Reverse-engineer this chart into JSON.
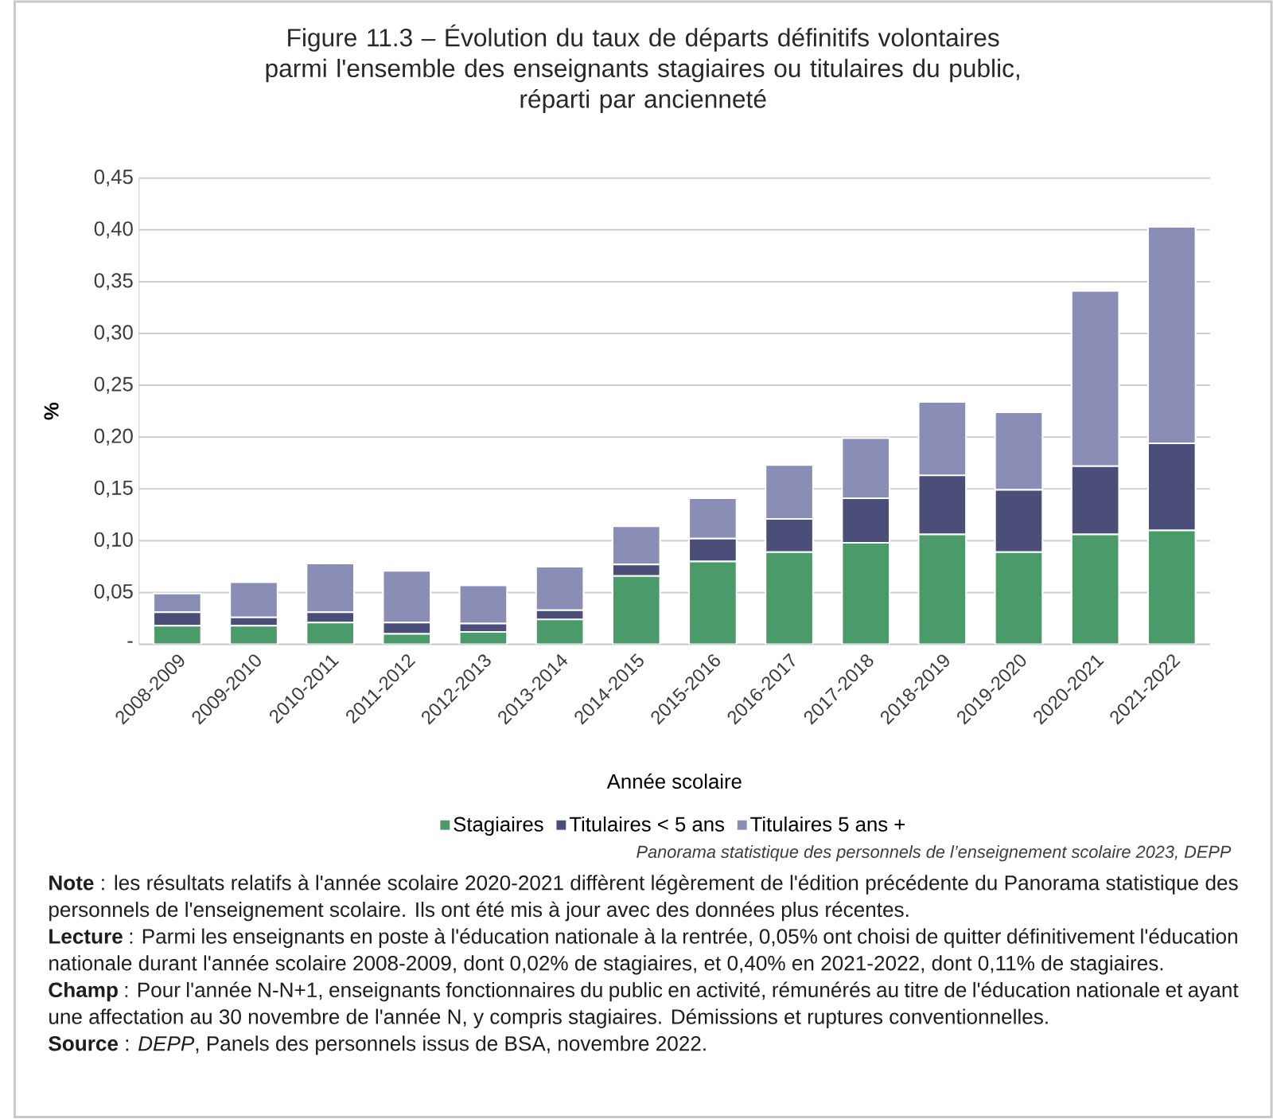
{
  "chart_data": {
    "type": "bar",
    "stacked": true,
    "title": "Figure 11.3 – Évolution du taux de départs définitifs volontaires\nparmi l'ensemble des enseignants stagiaires ou titulaires du public,\nréparti par ancienneté",
    "xlabel": "Année scolaire",
    "ylabel": "%",
    "categories": [
      "2008-2009",
      "2009-2010",
      "2010-2011",
      "2011-2012",
      "2012-2013",
      "2013-2014",
      "2014-2015",
      "2015-2016",
      "2016-2017",
      "2017-2018",
      "2018-2019",
      "2019-2020",
      "2020-2021",
      "2021-2022"
    ],
    "series": [
      {
        "name": "Stagiaires",
        "color": "#4a9a6a",
        "values": [
          0.018,
          0.018,
          0.021,
          0.01,
          0.012,
          0.024,
          0.066,
          0.08,
          0.089,
          0.098,
          0.106,
          0.089,
          0.106,
          0.11
        ]
      },
      {
        "name": "Titulaires < 5 ans",
        "color": "#4a4e78",
        "values": [
          0.013,
          0.008,
          0.01,
          0.011,
          0.008,
          0.009,
          0.011,
          0.022,
          0.032,
          0.043,
          0.057,
          0.06,
          0.066,
          0.084
        ]
      },
      {
        "name": "Titulaires 5 ans +",
        "color": "#8a8db5",
        "values": [
          0.018,
          0.034,
          0.047,
          0.05,
          0.037,
          0.042,
          0.037,
          0.039,
          0.052,
          0.058,
          0.071,
          0.075,
          0.169,
          0.209
        ]
      }
    ],
    "ylim": [
      0,
      0.45
    ],
    "yticks": [
      {
        "value": 0,
        "label": "-"
      },
      {
        "value": 0.05,
        "label": "0,05"
      },
      {
        "value": 0.1,
        "label": "0,10"
      },
      {
        "value": 0.15,
        "label": "0,15"
      },
      {
        "value": 0.2,
        "label": "0,20"
      },
      {
        "value": 0.25,
        "label": "0,25"
      },
      {
        "value": 0.3,
        "label": "0,30"
      },
      {
        "value": 0.35,
        "label": "0,35"
      },
      {
        "value": 0.4,
        "label": "0,40"
      },
      {
        "value": 0.45,
        "label": "0,45"
      }
    ],
    "grid": "y",
    "legend": "bottom",
    "annotations": [
      "Panorama statistique des personnels de l’enseignement scolaire 2023, DEPP",
      "**Note** : les résultats relatifs à l'année scolaire 2020-2021 diffèrent légèrement de l'édition précédente du Panorama statistique des personnels de l'enseignement scolaire. Ils ont été mis à jour avec des données plus récentes.",
      "**Lecture** : Parmi les enseignants en poste à l'éducation nationale à la rentrée, 0,05% ont choisi de quitter définitivement l'éducation nationale durant l'année scolaire 2008-2009, dont 0,02% de stagiaires, et 0,40% en 2021-2022, dont 0,11% de stagiaires.",
      "**Champ** : Pour l'année N-N+1, enseignants fonctionnaires du public en activité, rémunérés au titre de l'éducation nationale et ayant une affectation au 30 novembre de l'année N, y compris stagiaires. Démissions et ruptures conventionnelles.",
      "**Source** : *DEPP*, Panels des personnels issus de BSA, novembre 2022."
    ]
  }
}
